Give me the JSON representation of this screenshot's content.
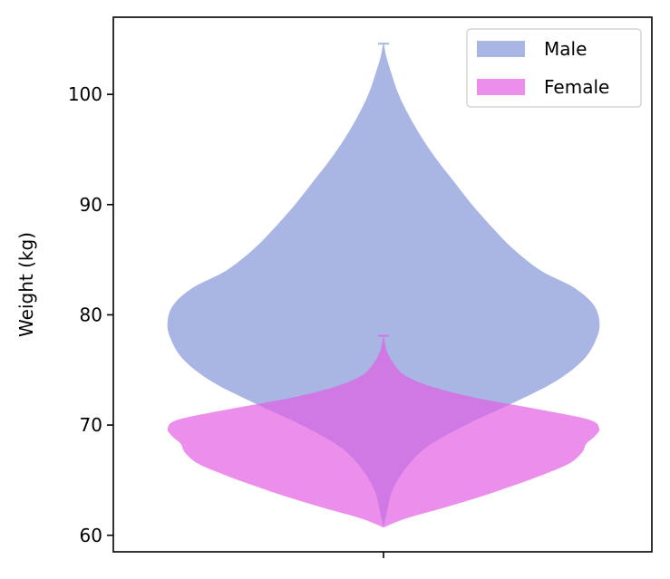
{
  "chart_data": {
    "type": "violin",
    "title": "",
    "xlabel": "",
    "ylabel": "Weight (kg)",
    "ylim": [
      58.5,
      107
    ],
    "yticks": [
      60,
      70,
      80,
      90,
      100
    ],
    "ytick_labels": [
      "60",
      "70",
      "80",
      "90",
      "100"
    ],
    "grid": false,
    "legend_position": "top-right",
    "series": [
      {
        "name": "Male",
        "color": "#7b8fd6",
        "opacity": 0.65,
        "min": 60.7,
        "max": 104.6,
        "profile": [
          [
            60.7,
            0.0
          ],
          [
            62,
            0.015
          ],
          [
            64,
            0.04
          ],
          [
            66,
            0.1
          ],
          [
            68,
            0.2
          ],
          [
            70,
            0.38
          ],
          [
            72,
            0.6
          ],
          [
            74,
            0.8
          ],
          [
            76,
            0.93
          ],
          [
            78,
            0.99
          ],
          [
            79.5,
            1.0
          ],
          [
            81,
            0.97
          ],
          [
            82.5,
            0.88
          ],
          [
            84,
            0.73
          ],
          [
            86,
            0.6
          ],
          [
            88,
            0.5
          ],
          [
            90,
            0.41
          ],
          [
            92,
            0.33
          ],
          [
            94,
            0.25
          ],
          [
            96,
            0.18
          ],
          [
            98,
            0.12
          ],
          [
            100,
            0.07
          ],
          [
            102,
            0.035
          ],
          [
            103.5,
            0.012
          ],
          [
            104.6,
            0.0
          ]
        ]
      },
      {
        "name": "Female",
        "color": "#e35ae3",
        "opacity": 0.68,
        "min": 60.7,
        "max": 78.1,
        "profile": [
          [
            60.7,
            0.0
          ],
          [
            61.5,
            0.1
          ],
          [
            62.5,
            0.28
          ],
          [
            63.5,
            0.45
          ],
          [
            64.5,
            0.6
          ],
          [
            65.5,
            0.74
          ],
          [
            66.5,
            0.86
          ],
          [
            67.5,
            0.92
          ],
          [
            68.3,
            0.94
          ],
          [
            69,
            0.98
          ],
          [
            69.7,
            1.0
          ],
          [
            70.5,
            0.95
          ],
          [
            71.5,
            0.7
          ],
          [
            72.5,
            0.42
          ],
          [
            73.5,
            0.22
          ],
          [
            74.5,
            0.1
          ],
          [
            75.5,
            0.05
          ],
          [
            76.5,
            0.02
          ],
          [
            77.3,
            0.008
          ],
          [
            78.1,
            0.0
          ]
        ]
      }
    ]
  }
}
